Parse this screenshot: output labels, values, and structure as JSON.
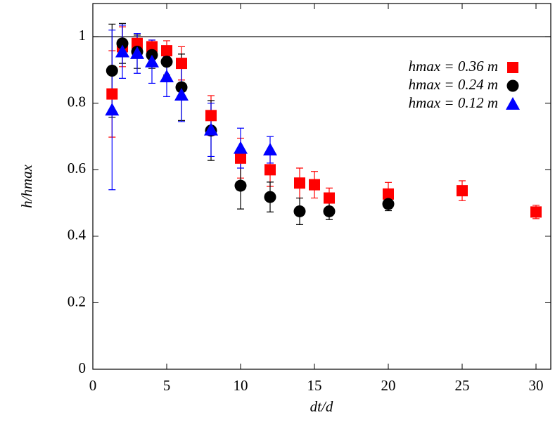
{
  "chart_data": {
    "type": "scatter",
    "xlabel": "dt/d",
    "ylabel": "h/hmax",
    "xlim": [
      0,
      31
    ],
    "ylim": [
      0,
      1.1
    ],
    "xticks": [
      0,
      5,
      10,
      15,
      20,
      25,
      30
    ],
    "yticks": [
      0,
      0.2,
      0.4,
      0.6,
      0.8,
      1
    ],
    "reference_line": 1,
    "legend": "upper right",
    "series": [
      {
        "name": "hmax = 0.36 m",
        "color": "#ff0000",
        "marker": "square",
        "x": [
          1.3,
          2,
          3,
          4,
          5,
          6,
          8,
          10,
          12,
          14,
          15,
          16,
          20,
          25,
          30
        ],
        "values": [
          0.828,
          0.97,
          0.98,
          0.97,
          0.958,
          0.92,
          0.763,
          0.635,
          0.6,
          0.56,
          0.555,
          0.515,
          0.527,
          0.537,
          0.473
        ],
        "errors": [
          0.13,
          0.06,
          0.03,
          0.02,
          0.03,
          0.05,
          0.06,
          0.06,
          0.05,
          0.045,
          0.04,
          0.03,
          0.035,
          0.03,
          0.02
        ]
      },
      {
        "name": "hmax = 0.24 m",
        "color": "#000000",
        "marker": "circle",
        "x": [
          1.3,
          2,
          3,
          4,
          5,
          6,
          8,
          10,
          12,
          14,
          16,
          20
        ],
        "values": [
          0.898,
          0.98,
          0.955,
          0.945,
          0.925,
          0.848,
          0.718,
          0.552,
          0.518,
          0.475,
          0.475,
          0.497
        ],
        "errors": [
          0.14,
          0.06,
          0.05,
          0.04,
          0.04,
          0.1,
          0.09,
          0.07,
          0.045,
          0.04,
          0.025,
          0.02
        ]
      },
      {
        "name": "hmax = 0.12 m",
        "color": "#0000ff",
        "marker": "triangle",
        "x": [
          1.3,
          2,
          3,
          4,
          5,
          6,
          8,
          10,
          12
        ],
        "values": [
          0.78,
          0.955,
          0.95,
          0.925,
          0.88,
          0.825,
          0.72,
          0.665,
          0.66
        ],
        "errors": [
          0.24,
          0.08,
          0.06,
          0.065,
          0.06,
          0.08,
          0.08,
          0.06,
          0.04
        ]
      }
    ]
  }
}
